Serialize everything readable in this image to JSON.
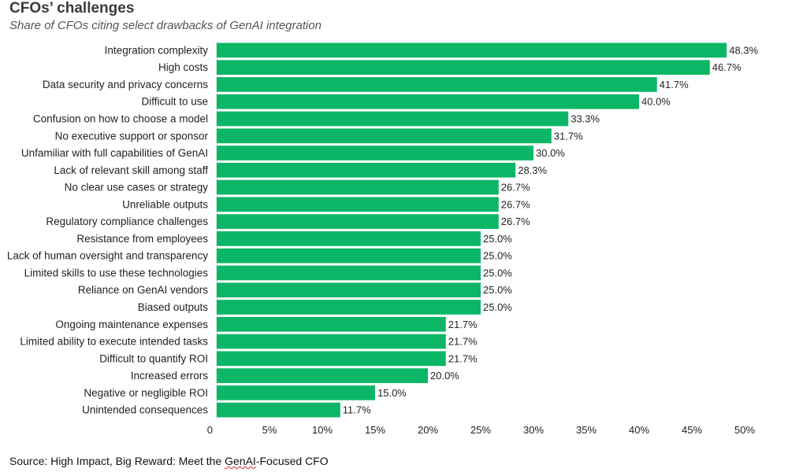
{
  "chart_data": {
    "type": "bar",
    "orientation": "horizontal",
    "title": "CFOs’ challenges",
    "subtitle": "Share of CFOs citing select drawbacks of GenAI integration",
    "categories": [
      "Integration complexity",
      "High costs",
      "Data security and privacy concerns",
      "Difficult to use",
      "Confusion on how to choose a model",
      "No executive support or sponsor",
      "Unfamiliar with full capabilities of GenAI",
      "Lack of relevant skill among staff",
      "No clear use cases or strategy",
      "Unreliable outputs",
      "Regulatory compliance challenges",
      "Resistance from employees",
      "Lack of human oversight and transparency",
      "Limited skills to use these technologies",
      "Reliance on GenAI vendors",
      "Biased outputs",
      "Ongoing maintenance expenses",
      "Limited ability to execute intended tasks",
      "Difficult to quantify ROI",
      "Increased errors",
      "Negative or negligible ROI",
      "Unintended consequences"
    ],
    "values": [
      48.3,
      46.7,
      41.7,
      40.0,
      33.3,
      31.7,
      30.0,
      28.3,
      26.7,
      26.7,
      26.7,
      25.0,
      25.0,
      25.0,
      25.0,
      25.0,
      21.7,
      21.7,
      21.7,
      20.0,
      15.0,
      11.7
    ],
    "value_labels": [
      "48.3%",
      "46.7%",
      "41.7%",
      "40.0%",
      "33.3%",
      "31.7%",
      "30.0%",
      "28.3%",
      "26.7%",
      "26.7%",
      "26.7%",
      "25.0%",
      "25.0%",
      "25.0%",
      "25.0%",
      "25.0%",
      "21.7%",
      "21.7%",
      "21.7%",
      "20.0%",
      "15.0%",
      "11.7%"
    ],
    "xlim": [
      0,
      50
    ],
    "x_ticks": [
      0,
      5,
      10,
      15,
      20,
      25,
      30,
      35,
      40,
      45,
      50
    ],
    "x_tick_labels": [
      "0",
      "5%",
      "10%",
      "15%",
      "20%",
      "25%",
      "30%",
      "35%",
      "40%",
      "45%",
      "50%"
    ],
    "bar_color": "#0bb766",
    "grid": false,
    "legend": "none"
  },
  "source": {
    "prefix": "Source: High Impact, Big Reward: Meet the ",
    "squiggle": "GenAI",
    "suffix": "-Focused CFO"
  }
}
